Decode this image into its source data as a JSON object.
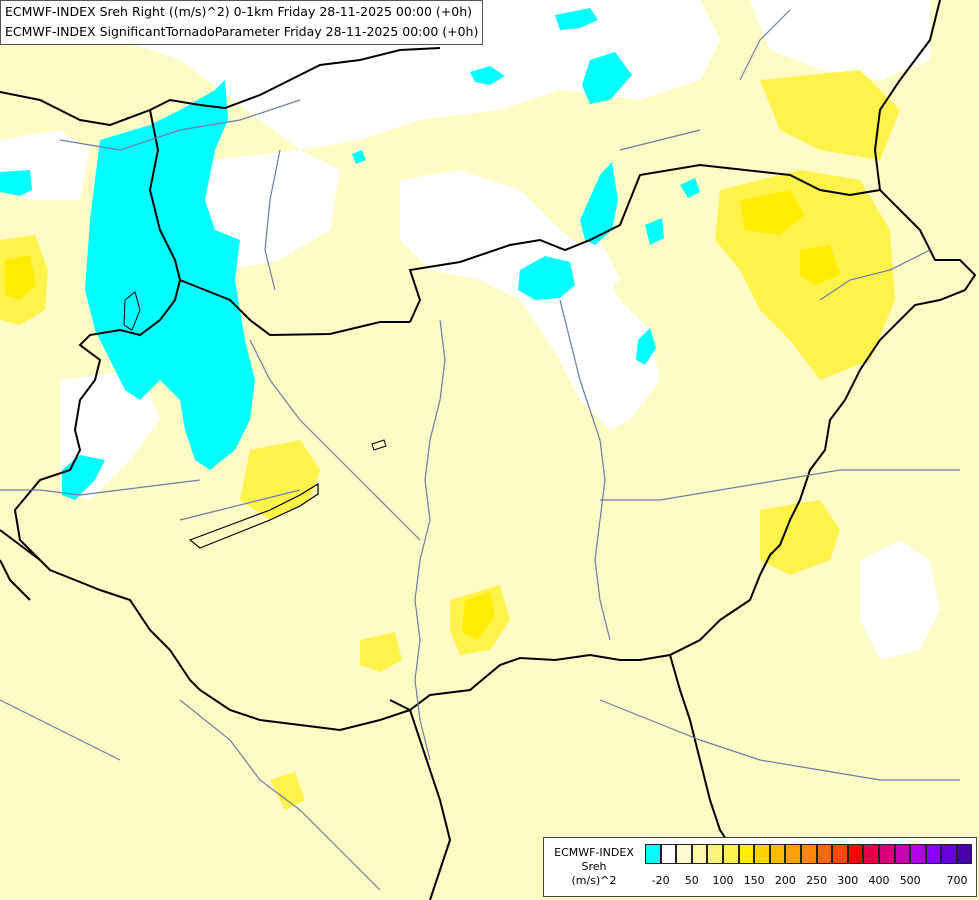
{
  "header": {
    "line1": "ECMWF-INDEX Sreh Right ((m/s)^2) 0-1km Friday 28-11-2025 00:00 (+0h)",
    "line2": "ECMWF-INDEX SignificantTornadoParameter Friday 28-11-2025 00:00 (+0h)"
  },
  "colors": {
    "background": "#fffbc4",
    "cyan": "#00ffff",
    "white": "#ffffff",
    "pale_yellow": "#fffbc4",
    "light_yellow": "#fff9a0",
    "yellow": "#fff24a",
    "bright_yellow": "#ffee00",
    "border": "#000000",
    "river": "#6a7da8"
  },
  "legend": {
    "title_line1": "ECMWF-INDEX",
    "title_line2": "Sreh",
    "title_line3": "(m/s)^2",
    "swatches": [
      "#00ffff",
      "#ffffff",
      "#fffbd0",
      "#fff8a8",
      "#fff47a",
      "#fff04c",
      "#ffec00",
      "#ffd200",
      "#ffbc00",
      "#ffa000",
      "#ff8800",
      "#ff6a00",
      "#ff4a00",
      "#ff0000",
      "#e6004a",
      "#d6007a",
      "#c800b0",
      "#b400e6",
      "#8a00ff",
      "#6a00d8",
      "#4a00a8"
    ],
    "ticks": [
      "-20",
      "50",
      "100",
      "150",
      "200",
      "250",
      "300",
      "400",
      "500",
      "700"
    ]
  }
}
